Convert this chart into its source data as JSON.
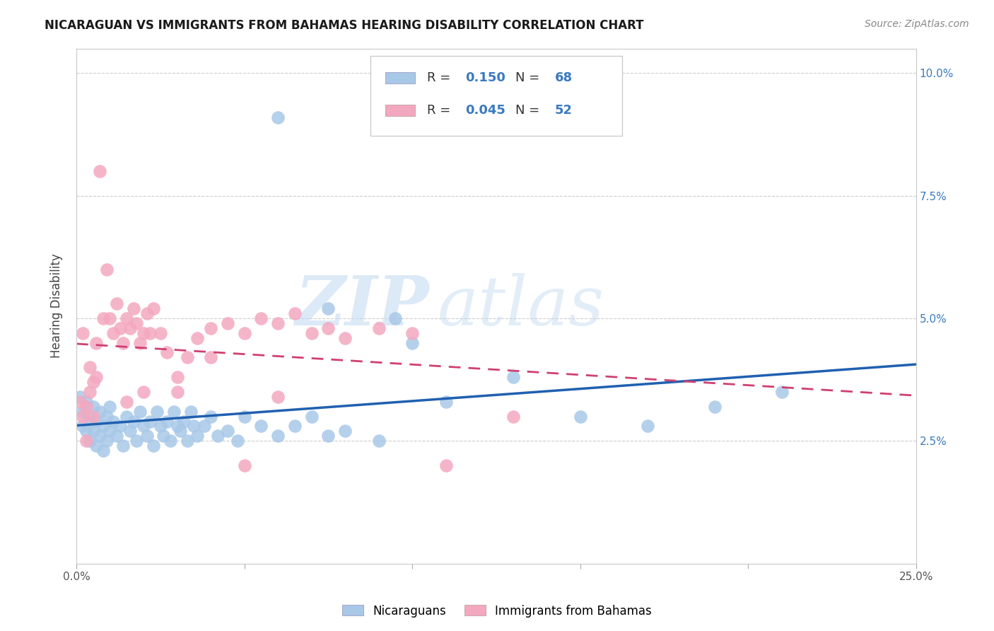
{
  "title": "NICARAGUAN VS IMMIGRANTS FROM BAHAMAS HEARING DISABILITY CORRELATION CHART",
  "source": "Source: ZipAtlas.com",
  "ylabel": "Hearing Disability",
  "xlim": [
    0.0,
    0.25
  ],
  "ylim": [
    0.0,
    0.105
  ],
  "xticks": [
    0.0,
    0.05,
    0.1,
    0.15,
    0.2,
    0.25
  ],
  "xticklabels": [
    "0.0%",
    "",
    "",
    "",
    "",
    "25.0%"
  ],
  "yticks": [
    0.0,
    0.025,
    0.05,
    0.075,
    0.1
  ],
  "yticklabels_left": [
    "",
    "",
    "",
    "",
    ""
  ],
  "yticklabels_right": [
    "",
    "2.5%",
    "5.0%",
    "7.5%",
    "10.0%"
  ],
  "blue_R": "0.150",
  "blue_N": "68",
  "pink_R": "0.045",
  "pink_N": "52",
  "blue_color": "#a8c8e8",
  "pink_color": "#f4a8c0",
  "blue_line_color": "#2060b0",
  "pink_line_color": "#d04070",
  "legend_label_blue": "Nicaraguans",
  "legend_label_pink": "Immigrants from Bahamas",
  "watermark": "ZIPAtlas",
  "blue_scatter_x": [
    0.001,
    0.002,
    0.002,
    0.003,
    0.003,
    0.004,
    0.004,
    0.005,
    0.005,
    0.006,
    0.006,
    0.007,
    0.007,
    0.008,
    0.008,
    0.009,
    0.009,
    0.01,
    0.01,
    0.011,
    0.012,
    0.013,
    0.014,
    0.015,
    0.016,
    0.017,
    0.018,
    0.019,
    0.02,
    0.021,
    0.022,
    0.023,
    0.024,
    0.025,
    0.026,
    0.027,
    0.028,
    0.029,
    0.03,
    0.031,
    0.032,
    0.033,
    0.034,
    0.035,
    0.036,
    0.038,
    0.04,
    0.042,
    0.045,
    0.048,
    0.05,
    0.055,
    0.06,
    0.065,
    0.07,
    0.075,
    0.08,
    0.09,
    0.095,
    0.1,
    0.11,
    0.13,
    0.15,
    0.17,
    0.19,
    0.21,
    0.06,
    0.075
  ],
  "blue_scatter_y": [
    0.034,
    0.031,
    0.028,
    0.033,
    0.027,
    0.03,
    0.025,
    0.032,
    0.027,
    0.029,
    0.024,
    0.031,
    0.026,
    0.028,
    0.023,
    0.03,
    0.025,
    0.032,
    0.027,
    0.029,
    0.026,
    0.028,
    0.024,
    0.03,
    0.027,
    0.029,
    0.025,
    0.031,
    0.028,
    0.026,
    0.029,
    0.024,
    0.031,
    0.028,
    0.026,
    0.029,
    0.025,
    0.031,
    0.028,
    0.027,
    0.029,
    0.025,
    0.031,
    0.028,
    0.026,
    0.028,
    0.03,
    0.026,
    0.027,
    0.025,
    0.03,
    0.028,
    0.026,
    0.028,
    0.03,
    0.026,
    0.027,
    0.025,
    0.05,
    0.045,
    0.033,
    0.038,
    0.03,
    0.028,
    0.032,
    0.035,
    0.091,
    0.052
  ],
  "pink_scatter_x": [
    0.001,
    0.002,
    0.002,
    0.003,
    0.003,
    0.004,
    0.004,
    0.005,
    0.005,
    0.006,
    0.006,
    0.007,
    0.008,
    0.009,
    0.01,
    0.011,
    0.012,
    0.013,
    0.014,
    0.015,
    0.016,
    0.017,
    0.018,
    0.019,
    0.02,
    0.021,
    0.022,
    0.023,
    0.025,
    0.027,
    0.03,
    0.033,
    0.036,
    0.04,
    0.045,
    0.05,
    0.055,
    0.06,
    0.065,
    0.07,
    0.075,
    0.08,
    0.09,
    0.1,
    0.11,
    0.13,
    0.03,
    0.04,
    0.05,
    0.06,
    0.015,
    0.02
  ],
  "pink_scatter_y": [
    0.033,
    0.03,
    0.047,
    0.032,
    0.025,
    0.04,
    0.035,
    0.037,
    0.03,
    0.045,
    0.038,
    0.08,
    0.05,
    0.06,
    0.05,
    0.047,
    0.053,
    0.048,
    0.045,
    0.05,
    0.048,
    0.052,
    0.049,
    0.045,
    0.047,
    0.051,
    0.047,
    0.052,
    0.047,
    0.043,
    0.038,
    0.042,
    0.046,
    0.048,
    0.049,
    0.047,
    0.05,
    0.049,
    0.051,
    0.047,
    0.048,
    0.046,
    0.048,
    0.047,
    0.02,
    0.03,
    0.035,
    0.042,
    0.02,
    0.034,
    0.033,
    0.035
  ],
  "background_color": "#ffffff",
  "grid_color": "#c8c8c8",
  "right_axis_color": "#3a7abf",
  "title_color": "#1a1a1a",
  "source_color": "#888888"
}
